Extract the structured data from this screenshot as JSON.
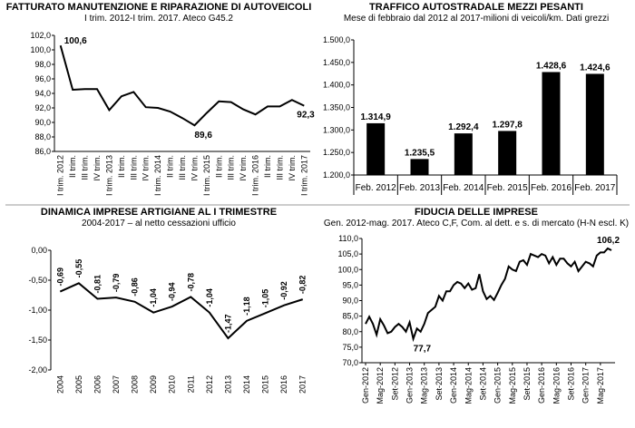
{
  "chart_data": [
    {
      "type": "line",
      "title": "FATTURATO MANUTENZIONE E RIPARAZIONE DI AUTOVEICOLI",
      "subtitle": "I trim. 2012-I trim. 2017. Ateco G45.2",
      "x": [
        "I trim. 2012",
        "II trim.",
        "III trim.",
        "IV trim.",
        "I trim. 2013",
        "II trim.",
        "III trim.",
        "IV trim.",
        "I trim. 2014",
        "II trim.",
        "III trim.",
        "IV trim.",
        "I trim. 2015",
        "II trim.",
        "III trim.",
        "IV trim.",
        "I trim. 2016",
        "II trim.",
        "III trim.",
        "IV trim.",
        "I trim. 2017"
      ],
      "series": [
        {
          "values": [
            100.6,
            94.5,
            94.6,
            94.6,
            91.7,
            93.6,
            94.2,
            92.1,
            92.0,
            91.5,
            90.6,
            89.6,
            91.3,
            92.9,
            92.8,
            91.8,
            91.1,
            92.2,
            92.2,
            93.1,
            92.3
          ]
        }
      ],
      "ylim": [
        86.0,
        102.0
      ],
      "yticks": [
        "86,0",
        "88,0",
        "90,0",
        "92,0",
        "94,0",
        "96,0",
        "98,0",
        "100,0",
        "102,0"
      ],
      "annotations": [
        {
          "index": 0,
          "label": "100,6"
        },
        {
          "index": 11,
          "label": "89,6"
        },
        {
          "index": 20,
          "label": "92,3"
        }
      ]
    },
    {
      "type": "bar",
      "title": "TRAFFICO AUTOSTRADALE MEZZI PESANTI",
      "subtitle": "Mese di febbraio dal 2012 al 2017-milioni di veicoli/km. Dati grezzi",
      "categories": [
        "Feb. 2012",
        "Feb. 2013",
        "Feb. 2014",
        "Feb. 2015",
        "Feb. 2016",
        "Feb. 2017"
      ],
      "values": [
        1314.9,
        1235.5,
        1292.4,
        1297.8,
        1428.6,
        1424.6
      ],
      "labels": [
        "1.314,9",
        "1.235,5",
        "1.292,4",
        "1.297,8",
        "1.428,6",
        "1.424,6"
      ],
      "ylim": [
        1200.0,
        1500.0
      ],
      "yticks": [
        "1.200,0",
        "1.250,0",
        "1.300,0",
        "1.350,0",
        "1.400,0",
        "1.450,0",
        "1.500,0"
      ]
    },
    {
      "type": "line",
      "title": "DINAMICA IMPRESE ARTIGIANE AL I TRIMESTRE",
      "subtitle": "2004-2017 – al netto cessazioni ufficio",
      "x": [
        "2004",
        "2005",
        "2006",
        "2007",
        "2008",
        "2009",
        "2010",
        "2011",
        "2012",
        "2013",
        "2014",
        "2015",
        "2016",
        "2017"
      ],
      "series": [
        {
          "values": [
            -0.69,
            -0.55,
            -0.81,
            -0.79,
            -0.86,
            -1.04,
            -0.94,
            -0.78,
            -1.04,
            -1.47,
            -1.18,
            -1.05,
            -0.92,
            -0.82
          ]
        }
      ],
      "labels": [
        "-0,69",
        "-0,55",
        "-0,81",
        "-0,79",
        "-0,86",
        "-1,04",
        "-0,94",
        "-0,78",
        "-1,04",
        "-1,47",
        "-1,18",
        "-1,05",
        "-0,92",
        "-0,82"
      ],
      "ylim": [
        -2.0,
        0.0
      ],
      "yticks": [
        "-2,00",
        "-1,50",
        "-1,00",
        "-0,50",
        "0,00"
      ]
    },
    {
      "type": "line",
      "title": "FIDUCIA DELLE IMPRESE",
      "subtitle": "Gen. 2012-mag. 2017. Ateco C,F, Com. al dett. e s. di mercato (H-N escl. K)",
      "xticks": [
        "Gen-2012",
        "Mag-2012",
        "Set-2012",
        "Gen-2013",
        "Mag-2013",
        "Set-2013",
        "Gen-2014",
        "Mag-2014",
        "Set-2014",
        "Gen-2015",
        "Mag-2015",
        "Set-2015",
        "Gen-2016",
        "Mag-2016",
        "Set-2016",
        "Gen-2017",
        "Mag-2017"
      ],
      "series": [
        {
          "values": [
            82.5,
            84.8,
            82.5,
            79.0,
            84.0,
            82.0,
            79.5,
            80.0,
            81.5,
            82.5,
            81.5,
            80.0,
            83.0,
            77.7,
            81.0,
            80.0,
            82.5,
            86.0,
            87.0,
            88.0,
            91.5,
            90.0,
            93.0,
            93.0,
            95.0,
            96.0,
            95.5,
            94.0,
            95.5,
            93.5,
            94.0,
            98.5,
            93.0,
            90.5,
            91.5,
            90.2,
            92.5,
            95.0,
            97.0,
            101.0,
            100.0,
            99.5,
            102.5,
            103.0,
            101.5,
            105.0,
            104.5,
            104.0,
            105.0,
            104.5,
            102.0,
            104.0,
            101.5,
            103.5,
            103.5,
            102.0,
            101.0,
            102.5,
            99.5,
            101.0,
            102.5,
            102.0,
            101.0,
            104.5,
            105.5,
            105.5,
            106.8,
            106.2
          ]
        }
      ],
      "ylim": [
        70.0,
        110.0
      ],
      "yticks": [
        "70,0",
        "75,0",
        "80,0",
        "85,0",
        "90,0",
        "95,0",
        "100,0",
        "105,0",
        "110,0"
      ],
      "annotations": [
        {
          "index": 13,
          "label": "77,7"
        },
        {
          "index": 67,
          "label": "106,2"
        }
      ]
    }
  ]
}
